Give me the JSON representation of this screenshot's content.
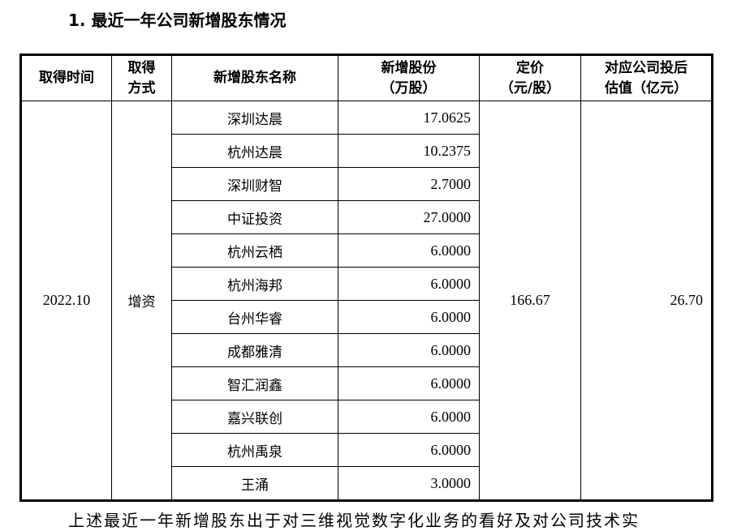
{
  "title": "1. 最近一年公司新增股东情况",
  "headers": [
    "取得时间",
    "取得\n方式",
    "新增股东名称",
    "新增股份\n（万股）",
    "定价\n（元/股）",
    "对应公司投后\n估值（亿元）"
  ],
  "date": "2022.10",
  "method": "增资",
  "price": "166.67",
  "valuation": "26.70",
  "rows": [
    {
      "name": "深圳达晨",
      "shares": "17.0625"
    },
    {
      "name": "杭州达晨",
      "shares": "10.2375"
    },
    {
      "name": "深圳财智",
      "shares": "2.7000"
    },
    {
      "name": "中证投资",
      "shares": "27.0000"
    },
    {
      "name": "杭州云栖",
      "shares": "6.0000"
    },
    {
      "name": "杭州海邦",
      "shares": "6.0000"
    },
    {
      "name": "台州华睿",
      "shares": "6.0000"
    },
    {
      "name": "成都雅清",
      "shares": "6.0000"
    },
    {
      "name": "智汇润鑫",
      "shares": "6.0000"
    },
    {
      "name": "嘉兴联创",
      "shares": "6.0000"
    },
    {
      "name": "杭州禹泉",
      "shares": "6.0000"
    },
    {
      "name": "王涌",
      "shares": "3.0000"
    }
  ],
  "footer_text": "上述最近一年新增股东出于对三维视觉数字化业务的看好及对公司技术实"
}
